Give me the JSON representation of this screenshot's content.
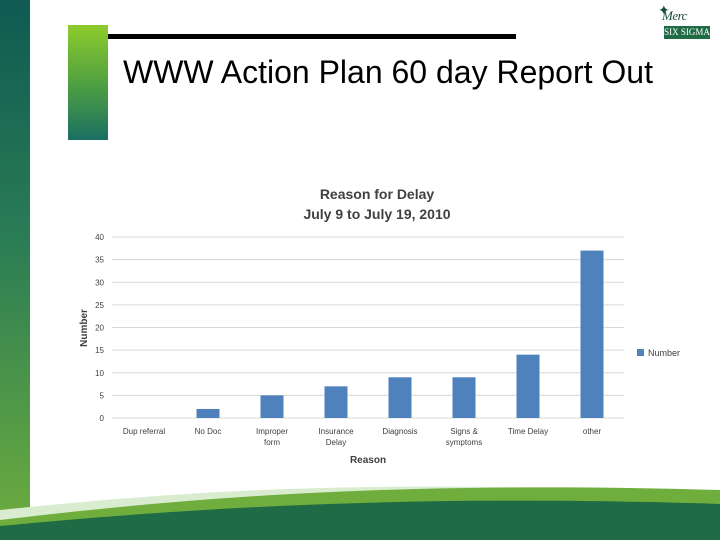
{
  "slide": {
    "title": "WWW Action Plan 60 day Report Out",
    "logo_text_top": "Merc",
    "logo_text_bottom": "SIX SIGMA"
  },
  "colors": {
    "bar": "#4f81bd",
    "grid": "#d9d9d9",
    "band_dark": "#0f5a52",
    "band_light": "#8fcb2c"
  },
  "chart_data": {
    "type": "bar",
    "title": "Reason for Delay",
    "subtitle": "July 9 to July 19, 2010",
    "xlabel": "Reason",
    "ylabel": "Number",
    "categories": [
      "Dup referral",
      "No Doc",
      "Improper form",
      "Insurance Delay",
      "Diagnosis",
      "Signs & symptoms",
      "Time Delay",
      "other"
    ],
    "category_lines": [
      [
        "Dup referral"
      ],
      [
        "No Doc"
      ],
      [
        "Improper",
        "form"
      ],
      [
        "Insurance",
        "Delay"
      ],
      [
        "Diagnosis"
      ],
      [
        "Signs &",
        "symptoms"
      ],
      [
        "Time Delay"
      ],
      [
        "other"
      ]
    ],
    "series": [
      {
        "name": "Number",
        "values": [
          0,
          2,
          5,
          7,
          9,
          9,
          14,
          37
        ]
      }
    ],
    "ylim": [
      0,
      40
    ],
    "yticks": [
      "0",
      "5",
      "10",
      "15",
      "20",
      "25",
      "30",
      "35",
      "40"
    ],
    "grid": true,
    "legend": "right"
  }
}
